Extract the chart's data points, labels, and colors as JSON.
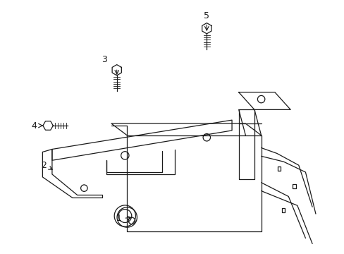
{
  "background_color": "#ffffff",
  "line_color": "#1a1a1a",
  "fig_width": 4.89,
  "fig_height": 3.6,
  "dpi": 100,
  "xlim": [
    0,
    10
  ],
  "ylim": [
    0,
    7.5
  ]
}
